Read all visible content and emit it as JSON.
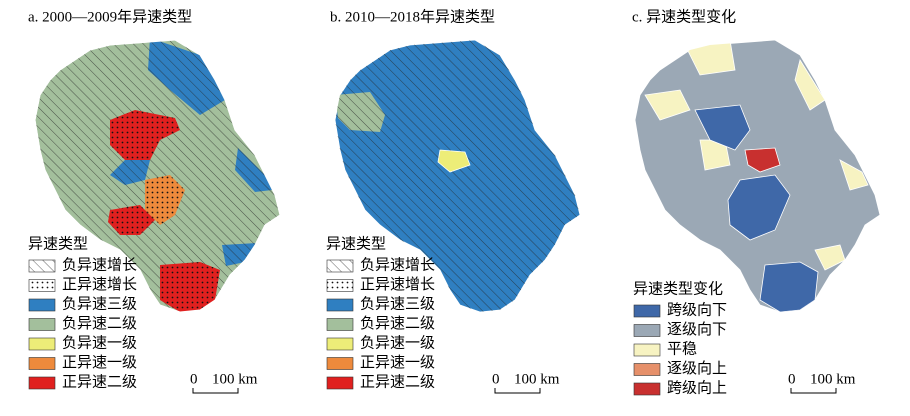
{
  "panels": [
    {
      "title": "a. 2000—2009年异速类型",
      "legend": {
        "title": "异速类型",
        "items": [
          {
            "label": "负异速增长",
            "color": "#ffffff",
            "pattern": "hatch"
          },
          {
            "label": "正异速增长",
            "color": "#ffffff",
            "pattern": "dots"
          },
          {
            "label": "负异速三级",
            "color": "#2f7fc1"
          },
          {
            "label": "负异速二级",
            "color": "#a3bf9c"
          },
          {
            "label": "负异速一级",
            "color": "#eded78"
          },
          {
            "label": "正异速一级",
            "color": "#ee8a3c"
          },
          {
            "label": "正异速二级",
            "color": "#e0201f"
          }
        ]
      },
      "scale": {
        "zero": "0",
        "label": "100 km"
      }
    },
    {
      "title": "b. 2010—2018年异速类型",
      "legend": {
        "title": "异速类型",
        "items": [
          {
            "label": "负异速增长",
            "color": "#ffffff",
            "pattern": "hatch"
          },
          {
            "label": "正异速增长",
            "color": "#ffffff",
            "pattern": "dots"
          },
          {
            "label": "负异速三级",
            "color": "#2f7fc1"
          },
          {
            "label": "负异速二级",
            "color": "#a3bf9c"
          },
          {
            "label": "负异速一级",
            "color": "#eded78"
          },
          {
            "label": "正异速一级",
            "color": "#ee8a3c"
          },
          {
            "label": "正异速二级",
            "color": "#e0201f"
          }
        ]
      },
      "scale": {
        "zero": "0",
        "label": "100 km"
      }
    },
    {
      "title": "c. 异速类型变化",
      "legend": {
        "title": "异速类型变化",
        "items": [
          {
            "label": "跨级向下",
            "color": "#3f68a8"
          },
          {
            "label": "逐级向下",
            "color": "#9ba8b5"
          },
          {
            "label": "平稳",
            "color": "#f7f3c2"
          },
          {
            "label": "逐级向上",
            "color": "#e6906a"
          },
          {
            "label": "跨级向上",
            "color": "#c8302f"
          }
        ]
      },
      "scale": {
        "zero": "0",
        "label": "100 km"
      }
    }
  ]
}
